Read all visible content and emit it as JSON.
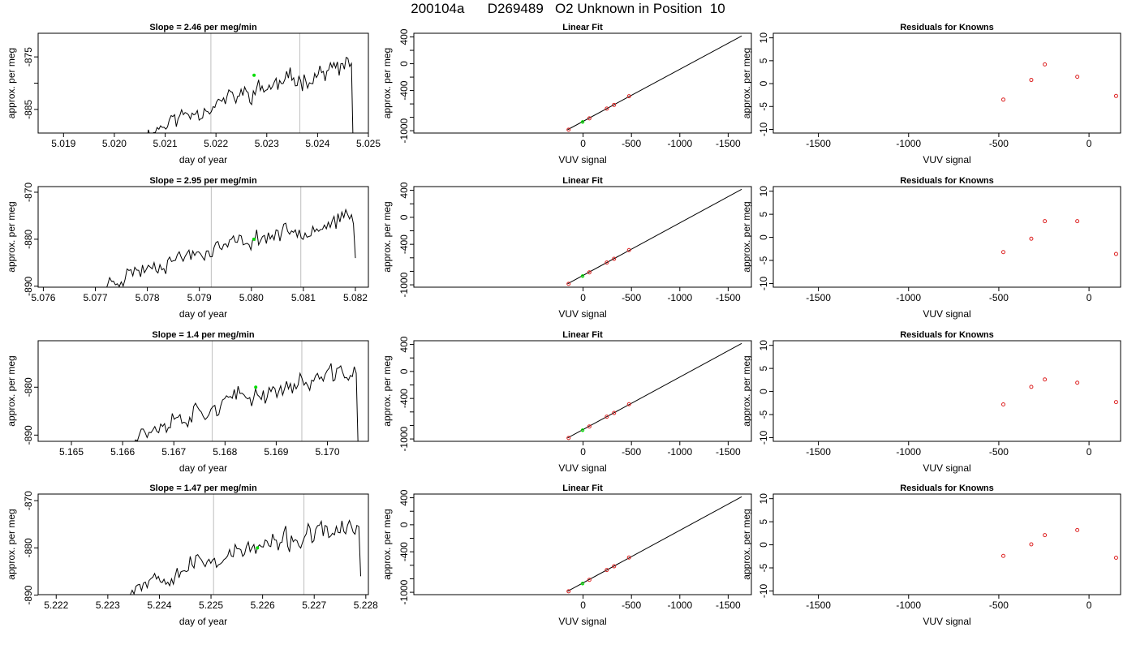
{
  "page_title": "200104a      D269489   O2 Unknown in Position  10",
  "colors": {
    "trace": "#000000",
    "vlines": "#c8c8c8",
    "unknown_point": "#00dd00",
    "known_points": "#dd2222",
    "fit_line": "#000000"
  },
  "chart_data": [
    {
      "id": "r1-trace",
      "type": "line",
      "title": "Slope =  2.46  per meg/min",
      "xlabel": "day of year",
      "ylabel": "approx. per meg",
      "xlim": [
        5.0185,
        5.025
      ],
      "ylim": [
        -889.5,
        -870.5
      ],
      "xticks": [
        5.019,
        5.02,
        5.021,
        5.022,
        5.023,
        5.024,
        5.025
      ],
      "xtick_labels": [
        "5.019",
        "5.020",
        "5.021",
        "5.022",
        "5.023",
        "5.024",
        "5.025"
      ],
      "yticks": [
        -875,
        -880,
        -885
      ],
      "ytick_labels": [
        "-875",
        "",
        "-885"
      ],
      "vlines": [
        5.0219,
        5.02365
      ],
      "trace": {
        "start": 5.0206,
        "end": 5.0247,
        "n": 120,
        "y0": -890.5,
        "y1": -876.5,
        "amp": 1.3,
        "seed": 11,
        "drop_to": -892
      },
      "marker": {
        "x": 5.02275,
        "y": -878.5
      }
    },
    {
      "id": "r1-fit",
      "type": "line",
      "title": "Linear Fit",
      "xlabel": "VUV signal",
      "ylabel": "approx. per meg",
      "xlim": [
        1750,
        -1740
      ],
      "ylim": [
        -1035,
        455
      ],
      "xticks": [
        -1500,
        -1000,
        -500,
        0
      ],
      "xtick_labels": [
        "-1500",
        "-1000",
        "-500",
        "0"
      ],
      "yticks": [
        400,
        200,
        0,
        -200,
        -400,
        -600,
        -800,
        -1000
      ],
      "ytick_labels": [
        "400",
        "",
        "0",
        "",
        "-400",
        "",
        "",
        "-1000"
      ],
      "line": [
        [
          -1640,
          415
        ],
        [
          160,
          -985
        ]
      ],
      "knowns": {
        "x": [
          -475,
          -320,
          -245,
          -65,
          150
        ],
        "y": [
          -485,
          -615,
          -670,
          -815,
          -985
        ]
      },
      "unknown": {
        "x": 5,
        "y": -870
      }
    },
    {
      "id": "r1-res",
      "type": "scatter",
      "title": "Residuals for Knowns",
      "xlabel": "VUV signal",
      "ylabel": "approx. per meg",
      "xlim": [
        -1750,
        175
      ],
      "ylim": [
        -10.8,
        11
      ],
      "xticks": [
        -1500,
        -1000,
        -500,
        0
      ],
      "xtick_labels": [
        "-1500",
        "-1000",
        "-500",
        "0"
      ],
      "yticks": [
        10,
        5,
        0,
        -5,
        -10
      ],
      "ytick_labels": [
        "10",
        "5",
        "0",
        "-5",
        "-10"
      ],
      "points": {
        "x": [
          -475,
          -320,
          -245,
          -65,
          150
        ],
        "y": [
          -3.5,
          0.8,
          4.2,
          1.5,
          -2.7
        ]
      }
    },
    {
      "id": "r2-trace",
      "type": "line",
      "title": "Slope =  2.95  per meg/min",
      "xlabel": "day of year",
      "ylabel": "approx. per meg",
      "xlim": [
        5.0759,
        5.08225
      ],
      "ylim": [
        -890.2,
        -868.8
      ],
      "xticks": [
        5.076,
        5.077,
        5.078,
        5.079,
        5.08,
        5.081,
        5.082
      ],
      "xtick_labels": [
        "5.076",
        "5.077",
        "5.078",
        "5.079",
        "5.080",
        "5.081",
        "5.082"
      ],
      "yticks": [
        -870,
        -880,
        -890
      ],
      "ytick_labels": [
        "-870",
        "-880",
        "-890"
      ],
      "vlines": [
        5.07923,
        5.08095
      ],
      "trace": {
        "start": 5.0772,
        "end": 5.082,
        "n": 130,
        "y0": -890,
        "y1": -875.5,
        "amp": 1.3,
        "seed": 23,
        "drop_to": -884
      },
      "marker": {
        "x": 5.08005,
        "y": -880
      }
    },
    {
      "id": "r2-fit",
      "type": "line",
      "title": "Linear Fit",
      "xlabel": "VUV signal",
      "ylabel": "approx. per meg",
      "xlim": [
        1750,
        -1740
      ],
      "ylim": [
        -1035,
        455
      ],
      "xticks": [
        -1500,
        -1000,
        -500,
        0
      ],
      "xtick_labels": [
        "-1500",
        "-1000",
        "-500",
        "0"
      ],
      "yticks": [
        400,
        200,
        0,
        -200,
        -400,
        -600,
        -800,
        -1000
      ],
      "ytick_labels": [
        "400",
        "",
        "0",
        "",
        "-400",
        "",
        "",
        "-1000"
      ],
      "line": [
        [
          -1640,
          415
        ],
        [
          160,
          -985
        ]
      ],
      "knowns": {
        "x": [
          -475,
          -320,
          -245,
          -65,
          150
        ],
        "y": [
          -485,
          -615,
          -670,
          -815,
          -985
        ]
      },
      "unknown": {
        "x": 5,
        "y": -870
      }
    },
    {
      "id": "r2-res",
      "type": "scatter",
      "title": "Residuals for Knowns",
      "xlabel": "VUV signal",
      "ylabel": "approx. per meg",
      "xlim": [
        -1750,
        175
      ],
      "ylim": [
        -10.8,
        11
      ],
      "xticks": [
        -1500,
        -1000,
        -500,
        0
      ],
      "xtick_labels": [
        "-1500",
        "-1000",
        "-500",
        "0"
      ],
      "yticks": [
        10,
        5,
        0,
        -5,
        -10
      ],
      "ytick_labels": [
        "10",
        "5",
        "0",
        "-5",
        "-10"
      ],
      "points": {
        "x": [
          -475,
          -320,
          -245,
          -65,
          150
        ],
        "y": [
          -3.2,
          -0.3,
          3.5,
          3.5,
          -3.6
        ]
      }
    },
    {
      "id": "r3-trace",
      "type": "line",
      "title": "Slope =  1.4  per meg/min",
      "xlabel": "day of year",
      "ylabel": "approx. per meg",
      "xlim": [
        5.16435,
        5.1708
      ],
      "ylim": [
        -891.3,
        -870.3
      ],
      "xticks": [
        5.165,
        5.166,
        5.167,
        5.168,
        5.169,
        5.17
      ],
      "xtick_labels": [
        "5.165",
        "5.166",
        "5.167",
        "5.168",
        "5.169",
        "5.170"
      ],
      "yticks": [
        -880,
        -890
      ],
      "ytick_labels": [
        "-880",
        "-890"
      ],
      "vlines": [
        5.16775,
        5.1695
      ],
      "trace": {
        "start": 5.1661,
        "end": 5.1706,
        "n": 120,
        "y0": -891.5,
        "y1": -876.5,
        "amp": 1.5,
        "seed": 37,
        "drop_to": -893
      },
      "marker": {
        "x": 5.1686,
        "y": -880
      }
    },
    {
      "id": "r3-fit",
      "type": "line",
      "title": "Linear Fit",
      "xlabel": "VUV signal",
      "ylabel": "approx. per meg",
      "xlim": [
        1750,
        -1740
      ],
      "ylim": [
        -1035,
        455
      ],
      "xticks": [
        -1500,
        -1000,
        -500,
        0
      ],
      "xtick_labels": [
        "-1500",
        "-1000",
        "-500",
        "0"
      ],
      "yticks": [
        400,
        200,
        0,
        -200,
        -400,
        -600,
        -800,
        -1000
      ],
      "ytick_labels": [
        "400",
        "",
        "0",
        "",
        "-400",
        "",
        "",
        "-1000"
      ],
      "line": [
        [
          -1640,
          415
        ],
        [
          160,
          -985
        ]
      ],
      "knowns": {
        "x": [
          -475,
          -320,
          -245,
          -65,
          150
        ],
        "y": [
          -485,
          -615,
          -670,
          -815,
          -985
        ]
      },
      "unknown": {
        "x": 5,
        "y": -870
      }
    },
    {
      "id": "r3-res",
      "type": "scatter",
      "title": "Residuals for Knowns",
      "xlabel": "VUV signal",
      "ylabel": "approx. per meg",
      "xlim": [
        -1750,
        175
      ],
      "ylim": [
        -10.8,
        11
      ],
      "xticks": [
        -1500,
        -1000,
        -500,
        0
      ],
      "xtick_labels": [
        "-1500",
        "-1000",
        "-500",
        "0"
      ],
      "yticks": [
        10,
        5,
        0,
        -5,
        -10
      ],
      "ytick_labels": [
        "10",
        "5",
        "0",
        "-5",
        "-10"
      ],
      "points": {
        "x": [
          -475,
          -320,
          -245,
          -65,
          150
        ],
        "y": [
          -2.8,
          1.0,
          2.6,
          1.9,
          -2.3
        ]
      }
    },
    {
      "id": "r4-trace",
      "type": "line",
      "title": "Slope =  1.47  per meg/min",
      "xlabel": "day of year",
      "ylabel": "approx. per meg",
      "xlim": [
        5.22165,
        5.22805
      ],
      "ylim": [
        -889.9,
        -868.6
      ],
      "xticks": [
        5.222,
        5.223,
        5.224,
        5.225,
        5.226,
        5.227,
        5.228
      ],
      "xtick_labels": [
        "5.222",
        "5.223",
        "5.224",
        "5.225",
        "5.226",
        "5.227",
        "5.228"
      ],
      "yticks": [
        -870,
        -880,
        -890
      ],
      "ytick_labels": [
        "-870",
        "-880",
        "-890"
      ],
      "vlines": [
        5.22505,
        5.2268
      ],
      "trace": {
        "start": 5.2234,
        "end": 5.2279,
        "n": 125,
        "y0": -889,
        "y1": -875.5,
        "amp": 1.6,
        "seed": 53,
        "drop_to": -886
      },
      "marker": {
        "x": 5.2259,
        "y": -880
      }
    },
    {
      "id": "r4-fit",
      "type": "line",
      "title": "Linear Fit",
      "xlabel": "VUV signal",
      "ylabel": "approx. per meg",
      "xlim": [
        1750,
        -1740
      ],
      "ylim": [
        -1035,
        455
      ],
      "xticks": [
        -1500,
        -1000,
        -500,
        0
      ],
      "xtick_labels": [
        "-1500",
        "-1000",
        "-500",
        "0"
      ],
      "yticks": [
        400,
        200,
        0,
        -200,
        -400,
        -600,
        -800,
        -1000
      ],
      "ytick_labels": [
        "400",
        "",
        "0",
        "",
        "-400",
        "",
        "",
        "-1000"
      ],
      "line": [
        [
          -1640,
          415
        ],
        [
          160,
          -985
        ]
      ],
      "knowns": {
        "x": [
          -475,
          -320,
          -245,
          -65,
          150
        ],
        "y": [
          -485,
          -615,
          -670,
          -815,
          -985
        ]
      },
      "unknown": {
        "x": 5,
        "y": -870
      }
    },
    {
      "id": "r4-res",
      "type": "scatter",
      "title": "Residuals for Knowns",
      "xlabel": "VUV signal",
      "ylabel": "approx. per meg",
      "xlim": [
        -1750,
        175
      ],
      "ylim": [
        -10.8,
        11
      ],
      "xticks": [
        -1500,
        -1000,
        -500,
        0
      ],
      "xtick_labels": [
        "-1500",
        "-1000",
        "-500",
        "0"
      ],
      "yticks": [
        10,
        5,
        0,
        -5,
        -10
      ],
      "ytick_labels": [
        "10",
        "5",
        "0",
        "-5",
        "-10"
      ],
      "points": {
        "x": [
          -475,
          -320,
          -245,
          -65,
          150
        ],
        "y": [
          -2.4,
          0.1,
          2.1,
          3.2,
          -2.8
        ]
      }
    }
  ]
}
